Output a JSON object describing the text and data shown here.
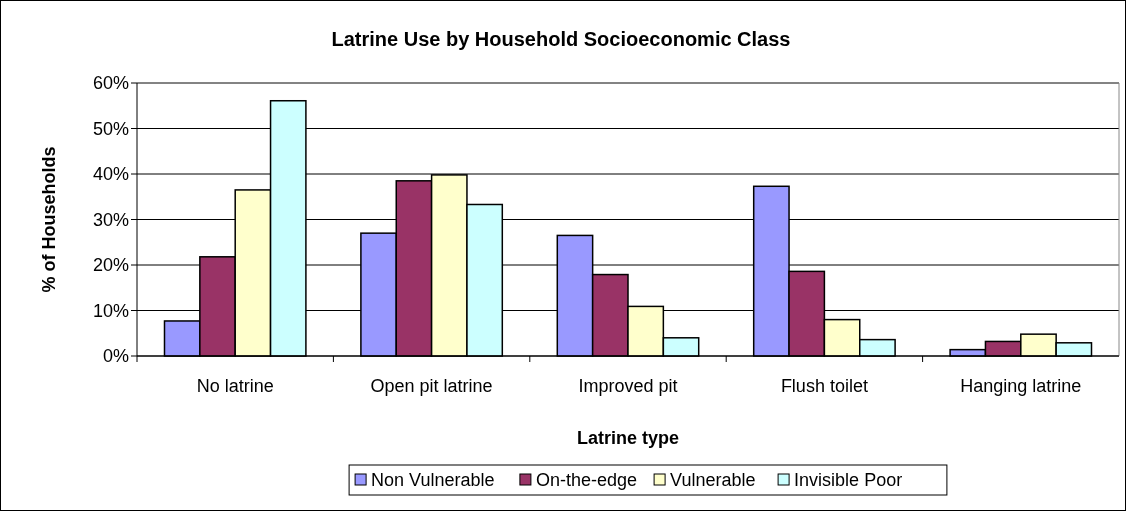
{
  "chart_data": {
    "type": "bar",
    "title": "Latrine Use by Household Socioeconomic Class",
    "xlabel": "Latrine type",
    "ylabel": "% of Households",
    "categories": [
      "No latrine",
      "Open pit latrine",
      "Improved pit",
      "Flush toilet",
      "Hanging latrine"
    ],
    "series": [
      {
        "name": "Non Vulnerable",
        "color": "#9999ff",
        "values": [
          7.7,
          27.0,
          26.5,
          37.3,
          1.4
        ]
      },
      {
        "name": "On-the-edge",
        "color": "#993366",
        "values": [
          21.8,
          38.5,
          17.9,
          18.6,
          3.2
        ]
      },
      {
        "name": "Vulnerable",
        "color": "#ffffcc",
        "values": [
          36.5,
          39.8,
          10.9,
          8.0,
          4.8
        ]
      },
      {
        "name": "Invisible Poor",
        "color": "#ccffff",
        "values": [
          56.1,
          33.3,
          4.0,
          3.6,
          2.9
        ]
      }
    ],
    "ylim": [
      0,
      60
    ],
    "yticks": [
      {
        "value": 0,
        "label": "0%"
      },
      {
        "value": 10,
        "label": "10%"
      },
      {
        "value": 20,
        "label": "20%"
      },
      {
        "value": 30,
        "label": "30%"
      },
      {
        "value": 40,
        "label": "40%"
      },
      {
        "value": 50,
        "label": "50%"
      },
      {
        "value": 60,
        "label": "60%"
      }
    ],
    "grid": "y",
    "legend": "bottom"
  }
}
